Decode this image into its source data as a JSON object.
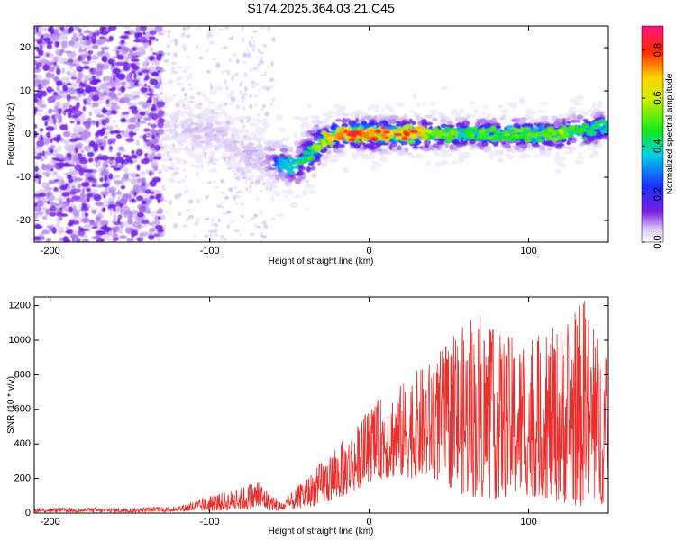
{
  "title": "S174.2025.364.03.21.C45",
  "colors": {
    "snr_line": "#e8302e",
    "frame": "#000000",
    "background": "#ffffff"
  },
  "chart_data": [
    {
      "type": "heatmap",
      "name": "spectrogram",
      "xlabel": "Height of straight line (km)",
      "ylabel": "Frequency (Hz)",
      "xlim": [
        -210,
        150
      ],
      "ylim": [
        -25,
        25
      ],
      "xticks": [
        "-200",
        "-100",
        "0",
        "100"
      ],
      "xtick_values": [
        -200,
        -100,
        0,
        100
      ],
      "yticks": [
        "-20",
        "-10",
        "0",
        "10",
        "20"
      ],
      "ytick_values": [
        -20,
        -10,
        0,
        10,
        20
      ],
      "colorbar": {
        "label": "Normalized spectral amplitude",
        "range": [
          0.0,
          0.9
        ],
        "ticks": [
          "0.0",
          "0.2",
          "0.4",
          "0.6",
          "0.8"
        ],
        "tick_values": [
          0.0,
          0.2,
          0.4,
          0.6,
          0.8
        ],
        "colormap": "rainbow (white/lavender at 0 to red/magenta at max)"
      },
      "ridge": {
        "description": "peak frequency track vs height",
        "height_km": [
          -130,
          -110,
          -95,
          -80,
          -65,
          -55,
          -45,
          -38,
          -30,
          -20,
          -10,
          0,
          10,
          20,
          30,
          40,
          50,
          60,
          70,
          80,
          90,
          100,
          110,
          120,
          130,
          140,
          150
        ],
        "freq_hz": [
          2,
          1,
          0,
          -4,
          -6,
          -7,
          -7,
          -5,
          -2,
          0,
          0,
          0,
          0,
          0,
          0,
          0,
          0,
          0,
          0,
          0,
          0,
          0,
          0,
          0,
          1,
          1,
          2
        ],
        "amplitude": [
          0.1,
          0.15,
          0.15,
          0.15,
          0.2,
          0.35,
          0.45,
          0.5,
          0.6,
          0.85,
          0.85,
          0.8,
          0.85,
          0.85,
          0.8,
          0.55,
          0.55,
          0.5,
          0.55,
          0.5,
          0.55,
          0.55,
          0.5,
          0.6,
          0.5,
          0.5,
          0.45
        ]
      }
    },
    {
      "type": "line",
      "name": "snr",
      "xlabel": "Height of straight line (km)",
      "ylabel": "SNR (10 * v/v)",
      "xlim": [
        -210,
        150
      ],
      "ylim": [
        0,
        1250
      ],
      "xticks": [
        "-200",
        "-100",
        "0",
        "100"
      ],
      "xtick_values": [
        -200,
        -100,
        0,
        100
      ],
      "yticks": [
        "0",
        "200",
        "400",
        "600",
        "800",
        "1000",
        "1200"
      ],
      "ytick_values": [
        0,
        200,
        400,
        600,
        800,
        1000,
        1200
      ],
      "envelope": {
        "x": [
          -210,
          -150,
          -120,
          -100,
          -80,
          -70,
          -55,
          -40,
          -25,
          -10,
          0,
          10,
          20,
          40,
          60,
          70,
          80,
          100,
          120,
          135,
          145,
          150
        ],
        "upper": [
          30,
          30,
          40,
          100,
          150,
          200,
          60,
          200,
          350,
          480,
          600,
          700,
          750,
          900,
          1100,
          1150,
          1050,
          1000,
          1100,
          1250,
          1000,
          900
        ],
        "lower": [
          5,
          5,
          8,
          10,
          15,
          20,
          10,
          30,
          60,
          120,
          180,
          200,
          200,
          200,
          100,
          80,
          80,
          100,
          60,
          30,
          40,
          80
        ]
      }
    }
  ]
}
